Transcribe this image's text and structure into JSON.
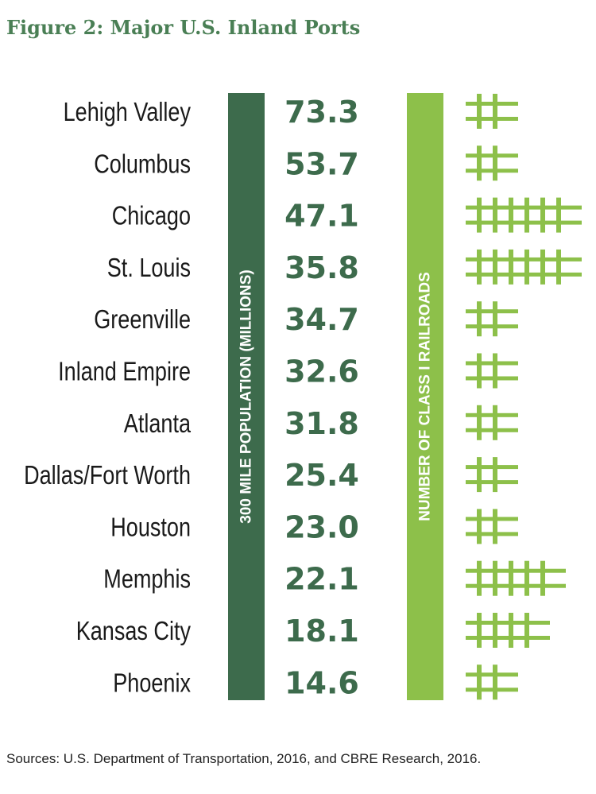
{
  "title": "Figure 2: Major U.S. Inland Ports",
  "source": "Sources: U.S. Department of Transportation, 2016, and CBRE Research, 2016.",
  "colors": {
    "title": "#4a7f55",
    "population_bar": "#3d6b4c",
    "population_text": "#3d6b4c",
    "railroad_bar": "#8dc04a",
    "railroad_icon": "#8dc04a",
    "label_text": "#1a1a1a"
  },
  "chart_data": {
    "type": "table",
    "population_label": "300 MILE POPULATION (MILLIONS)",
    "railroads_label": "NUMBER OF CLASS I RAILROADS",
    "categories": [
      "Lehigh Valley",
      "Columbus",
      "Chicago",
      "St. Louis",
      "Greenville",
      "Inland Empire",
      "Atlanta",
      "Dallas/Fort Worth",
      "Houston",
      "Memphis",
      "Kansas City",
      "Phoenix"
    ],
    "population_display": [
      "73.3",
      "53.7",
      "47.1",
      "35.8",
      "34.7",
      "32.6",
      "31.8",
      "25.4",
      "23.0",
      "22.1",
      "18.1",
      "14.6"
    ],
    "population_millions": [
      73.3,
      53.7,
      47.1,
      35.8,
      34.7,
      32.6,
      31.8,
      25.4,
      23.0,
      22.1,
      18.1,
      14.6
    ],
    "class_i_railroads": [
      2,
      2,
      6,
      6,
      2,
      2,
      2,
      2,
      2,
      5,
      4,
      2
    ]
  }
}
